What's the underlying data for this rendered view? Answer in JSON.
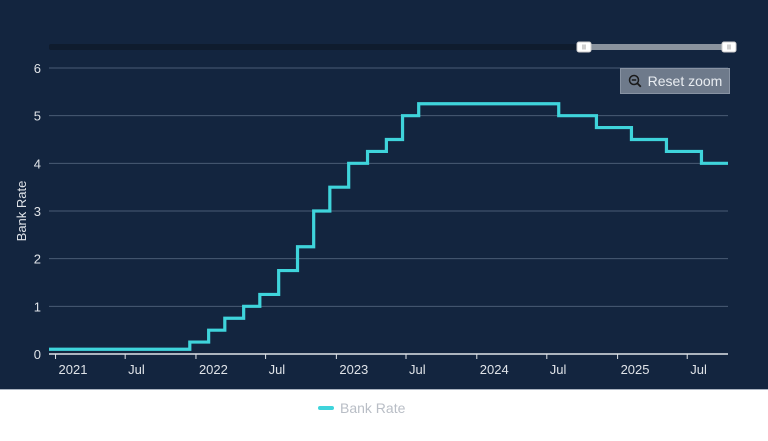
{
  "colors": {
    "background": "#13253f",
    "series": "#3fd4db",
    "grid": "#4a5b74",
    "axis": "#dfe3e8",
    "text": "#dfe3e8",
    "navigator_track": "#0f1c2e",
    "navigator_selected": "#8a939e"
  },
  "reset_zoom": {
    "label": "Reset zoom",
    "icon": "zoom-out-icon"
  },
  "legend": {
    "items": [
      {
        "label": "Bank Rate",
        "color": "#3fd4db"
      }
    ]
  },
  "chart_data": {
    "type": "line",
    "step": true,
    "title": "",
    "xlabel": "",
    "ylabel": "Bank Rate",
    "ylim": [
      0,
      6
    ],
    "yticks": [
      0,
      1,
      2,
      3,
      4,
      5,
      6
    ],
    "xticks": [
      {
        "label": "2021",
        "date": "2021-01-01"
      },
      {
        "label": "Jul",
        "date": "2021-07-01"
      },
      {
        "label": "2022",
        "date": "2022-01-01"
      },
      {
        "label": "Jul",
        "date": "2022-07-01"
      },
      {
        "label": "2023",
        "date": "2023-01-01"
      },
      {
        "label": "Jul",
        "date": "2023-07-01"
      },
      {
        "label": "2024",
        "date": "2024-01-01"
      },
      {
        "label": "Jul",
        "date": "2024-07-01"
      },
      {
        "label": "2025",
        "date": "2025-01-01"
      },
      {
        "label": "Jul",
        "date": "2025-07-01"
      }
    ],
    "xrange": [
      "2020-12-15",
      "2025-10-15"
    ],
    "grid": true,
    "legend_position": "bottom",
    "series": [
      {
        "name": "Bank Rate",
        "points": [
          [
            "2020-12-15",
            0.1
          ],
          [
            "2021-12-16",
            0.25
          ],
          [
            "2022-02-03",
            0.5
          ],
          [
            "2022-03-17",
            0.75
          ],
          [
            "2022-05-05",
            1.0
          ],
          [
            "2022-06-16",
            1.25
          ],
          [
            "2022-08-04",
            1.75
          ],
          [
            "2022-09-22",
            2.25
          ],
          [
            "2022-11-03",
            3.0
          ],
          [
            "2022-12-15",
            3.5
          ],
          [
            "2023-02-02",
            4.0
          ],
          [
            "2023-03-23",
            4.25
          ],
          [
            "2023-05-11",
            4.5
          ],
          [
            "2023-06-22",
            5.0
          ],
          [
            "2023-08-03",
            5.25
          ],
          [
            "2024-08-01",
            5.0
          ],
          [
            "2024-11-07",
            4.75
          ],
          [
            "2025-02-06",
            4.5
          ],
          [
            "2025-05-08",
            4.25
          ],
          [
            "2025-08-07",
            4.0
          ],
          [
            "2025-10-15",
            4.0
          ]
        ]
      }
    ]
  }
}
